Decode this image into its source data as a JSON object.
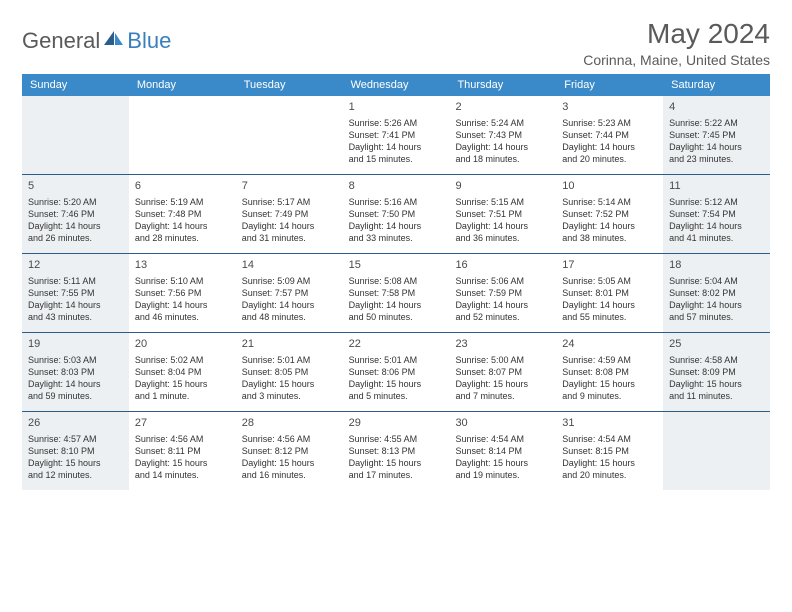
{
  "logo": {
    "text1": "General",
    "text2": "Blue"
  },
  "monthTitle": "May 2024",
  "location": "Corinna, Maine, United States",
  "weekdays": [
    "Sunday",
    "Monday",
    "Tuesday",
    "Wednesday",
    "Thursday",
    "Friday",
    "Saturday"
  ],
  "colors": {
    "headerBar": "#3a8ac9",
    "shade": "#edf0f2",
    "border": "#2b5d8a",
    "logoBlue": "#3a7fbd",
    "logoGray": "#5a5a5a"
  },
  "weeks": [
    [
      {
        "num": "",
        "shaded": true,
        "lines": []
      },
      {
        "num": "",
        "shaded": false,
        "lines": []
      },
      {
        "num": "",
        "shaded": false,
        "lines": []
      },
      {
        "num": "1",
        "shaded": false,
        "lines": [
          "Sunrise: 5:26 AM",
          "Sunset: 7:41 PM",
          "Daylight: 14 hours",
          "and 15 minutes."
        ]
      },
      {
        "num": "2",
        "shaded": false,
        "lines": [
          "Sunrise: 5:24 AM",
          "Sunset: 7:43 PM",
          "Daylight: 14 hours",
          "and 18 minutes."
        ]
      },
      {
        "num": "3",
        "shaded": false,
        "lines": [
          "Sunrise: 5:23 AM",
          "Sunset: 7:44 PM",
          "Daylight: 14 hours",
          "and 20 minutes."
        ]
      },
      {
        "num": "4",
        "shaded": true,
        "lines": [
          "Sunrise: 5:22 AM",
          "Sunset: 7:45 PM",
          "Daylight: 14 hours",
          "and 23 minutes."
        ]
      }
    ],
    [
      {
        "num": "5",
        "shaded": true,
        "lines": [
          "Sunrise: 5:20 AM",
          "Sunset: 7:46 PM",
          "Daylight: 14 hours",
          "and 26 minutes."
        ]
      },
      {
        "num": "6",
        "shaded": false,
        "lines": [
          "Sunrise: 5:19 AM",
          "Sunset: 7:48 PM",
          "Daylight: 14 hours",
          "and 28 minutes."
        ]
      },
      {
        "num": "7",
        "shaded": false,
        "lines": [
          "Sunrise: 5:17 AM",
          "Sunset: 7:49 PM",
          "Daylight: 14 hours",
          "and 31 minutes."
        ]
      },
      {
        "num": "8",
        "shaded": false,
        "lines": [
          "Sunrise: 5:16 AM",
          "Sunset: 7:50 PM",
          "Daylight: 14 hours",
          "and 33 minutes."
        ]
      },
      {
        "num": "9",
        "shaded": false,
        "lines": [
          "Sunrise: 5:15 AM",
          "Sunset: 7:51 PM",
          "Daylight: 14 hours",
          "and 36 minutes."
        ]
      },
      {
        "num": "10",
        "shaded": false,
        "lines": [
          "Sunrise: 5:14 AM",
          "Sunset: 7:52 PM",
          "Daylight: 14 hours",
          "and 38 minutes."
        ]
      },
      {
        "num": "11",
        "shaded": true,
        "lines": [
          "Sunrise: 5:12 AM",
          "Sunset: 7:54 PM",
          "Daylight: 14 hours",
          "and 41 minutes."
        ]
      }
    ],
    [
      {
        "num": "12",
        "shaded": true,
        "lines": [
          "Sunrise: 5:11 AM",
          "Sunset: 7:55 PM",
          "Daylight: 14 hours",
          "and 43 minutes."
        ]
      },
      {
        "num": "13",
        "shaded": false,
        "lines": [
          "Sunrise: 5:10 AM",
          "Sunset: 7:56 PM",
          "Daylight: 14 hours",
          "and 46 minutes."
        ]
      },
      {
        "num": "14",
        "shaded": false,
        "lines": [
          "Sunrise: 5:09 AM",
          "Sunset: 7:57 PM",
          "Daylight: 14 hours",
          "and 48 minutes."
        ]
      },
      {
        "num": "15",
        "shaded": false,
        "lines": [
          "Sunrise: 5:08 AM",
          "Sunset: 7:58 PM",
          "Daylight: 14 hours",
          "and 50 minutes."
        ]
      },
      {
        "num": "16",
        "shaded": false,
        "lines": [
          "Sunrise: 5:06 AM",
          "Sunset: 7:59 PM",
          "Daylight: 14 hours",
          "and 52 minutes."
        ]
      },
      {
        "num": "17",
        "shaded": false,
        "lines": [
          "Sunrise: 5:05 AM",
          "Sunset: 8:01 PM",
          "Daylight: 14 hours",
          "and 55 minutes."
        ]
      },
      {
        "num": "18",
        "shaded": true,
        "lines": [
          "Sunrise: 5:04 AM",
          "Sunset: 8:02 PM",
          "Daylight: 14 hours",
          "and 57 minutes."
        ]
      }
    ],
    [
      {
        "num": "19",
        "shaded": true,
        "lines": [
          "Sunrise: 5:03 AM",
          "Sunset: 8:03 PM",
          "Daylight: 14 hours",
          "and 59 minutes."
        ]
      },
      {
        "num": "20",
        "shaded": false,
        "lines": [
          "Sunrise: 5:02 AM",
          "Sunset: 8:04 PM",
          "Daylight: 15 hours",
          "and 1 minute."
        ]
      },
      {
        "num": "21",
        "shaded": false,
        "lines": [
          "Sunrise: 5:01 AM",
          "Sunset: 8:05 PM",
          "Daylight: 15 hours",
          "and 3 minutes."
        ]
      },
      {
        "num": "22",
        "shaded": false,
        "lines": [
          "Sunrise: 5:01 AM",
          "Sunset: 8:06 PM",
          "Daylight: 15 hours",
          "and 5 minutes."
        ]
      },
      {
        "num": "23",
        "shaded": false,
        "lines": [
          "Sunrise: 5:00 AM",
          "Sunset: 8:07 PM",
          "Daylight: 15 hours",
          "and 7 minutes."
        ]
      },
      {
        "num": "24",
        "shaded": false,
        "lines": [
          "Sunrise: 4:59 AM",
          "Sunset: 8:08 PM",
          "Daylight: 15 hours",
          "and 9 minutes."
        ]
      },
      {
        "num": "25",
        "shaded": true,
        "lines": [
          "Sunrise: 4:58 AM",
          "Sunset: 8:09 PM",
          "Daylight: 15 hours",
          "and 11 minutes."
        ]
      }
    ],
    [
      {
        "num": "26",
        "shaded": true,
        "lines": [
          "Sunrise: 4:57 AM",
          "Sunset: 8:10 PM",
          "Daylight: 15 hours",
          "and 12 minutes."
        ]
      },
      {
        "num": "27",
        "shaded": false,
        "lines": [
          "Sunrise: 4:56 AM",
          "Sunset: 8:11 PM",
          "Daylight: 15 hours",
          "and 14 minutes."
        ]
      },
      {
        "num": "28",
        "shaded": false,
        "lines": [
          "Sunrise: 4:56 AM",
          "Sunset: 8:12 PM",
          "Daylight: 15 hours",
          "and 16 minutes."
        ]
      },
      {
        "num": "29",
        "shaded": false,
        "lines": [
          "Sunrise: 4:55 AM",
          "Sunset: 8:13 PM",
          "Daylight: 15 hours",
          "and 17 minutes."
        ]
      },
      {
        "num": "30",
        "shaded": false,
        "lines": [
          "Sunrise: 4:54 AM",
          "Sunset: 8:14 PM",
          "Daylight: 15 hours",
          "and 19 minutes."
        ]
      },
      {
        "num": "31",
        "shaded": false,
        "lines": [
          "Sunrise: 4:54 AM",
          "Sunset: 8:15 PM",
          "Daylight: 15 hours",
          "and 20 minutes."
        ]
      },
      {
        "num": "",
        "shaded": true,
        "lines": []
      }
    ]
  ]
}
